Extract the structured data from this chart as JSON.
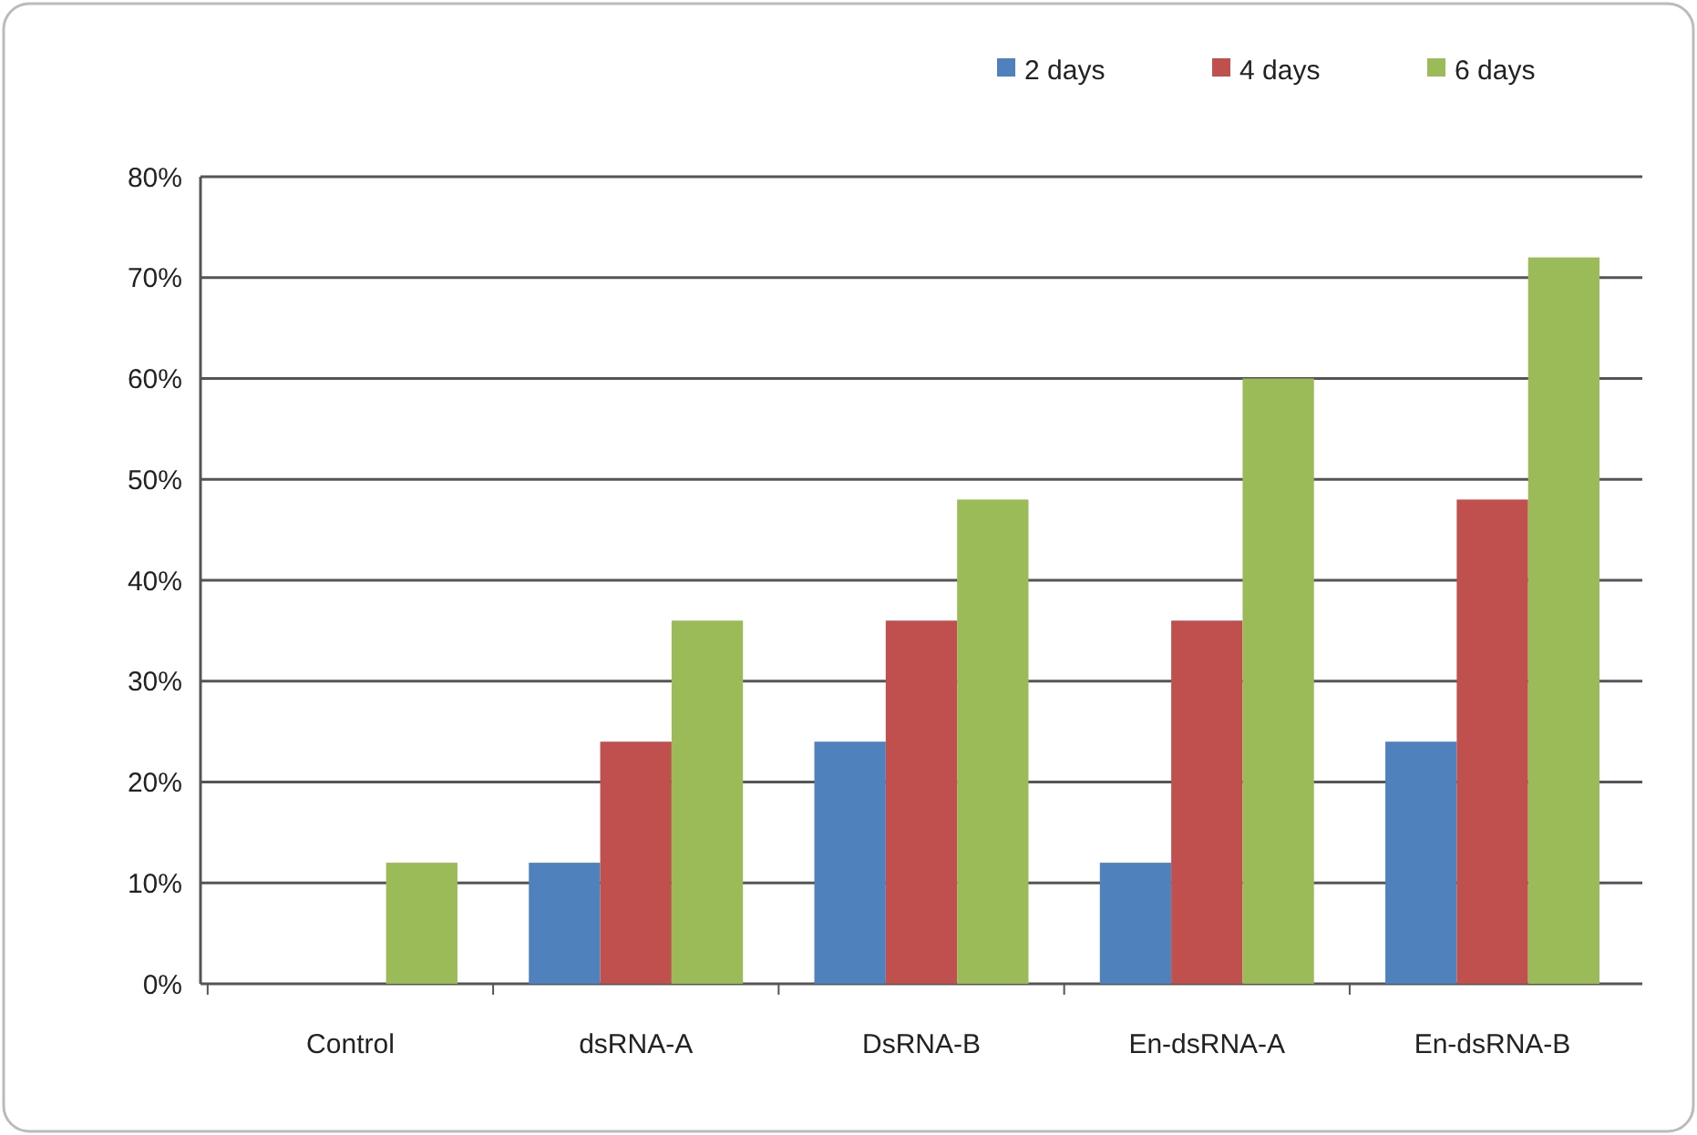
{
  "chart_data": {
    "type": "bar",
    "categories": [
      "Control",
      "dsRNA-A",
      "DsRNA-B",
      "En-dsRNA-A",
      "En-dsRNA-B"
    ],
    "series": [
      {
        "name": "2 days",
        "color": "#4f81bd",
        "values": [
          0,
          12,
          24,
          12,
          24
        ]
      },
      {
        "name": "4 days",
        "color": "#c0504d",
        "values": [
          0,
          24,
          36,
          36,
          48
        ]
      },
      {
        "name": "6 days",
        "color": "#9bbb59",
        "values": [
          12,
          36,
          48,
          60,
          72
        ]
      }
    ],
    "ylim": [
      0,
      80
    ],
    "yticks": [
      {
        "value": 0,
        "label": "0%"
      },
      {
        "value": 10,
        "label": "10%"
      },
      {
        "value": 20,
        "label": "20%"
      },
      {
        "value": 30,
        "label": "30%"
      },
      {
        "value": 40,
        "label": "40%"
      },
      {
        "value": 50,
        "label": "50%"
      },
      {
        "value": 60,
        "label": "60%"
      },
      {
        "value": 70,
        "label": "70%"
      },
      {
        "value": 80,
        "label": "80%"
      }
    ],
    "grid": "y",
    "legend": "top right"
  }
}
